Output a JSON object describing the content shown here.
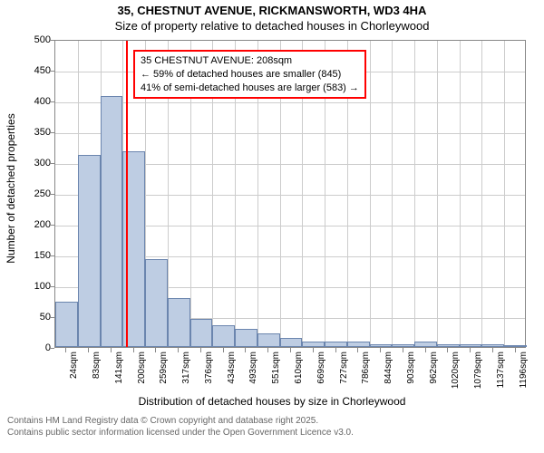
{
  "title": "35, CHESTNUT AVENUE, RICKMANSWORTH, WD3 4HA",
  "subtitle": "Size of property relative to detached houses in Chorleywood",
  "chart": {
    "type": "histogram",
    "ylabel": "Number of detached properties",
    "xlabel": "Distribution of detached houses by size in Chorleywood",
    "ylim": [
      0,
      500
    ],
    "ytick_step": 50,
    "yticks": [
      0,
      50,
      100,
      150,
      200,
      250,
      300,
      350,
      400,
      450,
      500
    ],
    "xticks": [
      "24sqm",
      "83sqm",
      "141sqm",
      "200sqm",
      "259sqm",
      "317sqm",
      "376sqm",
      "434sqm",
      "493sqm",
      "551sqm",
      "610sqm",
      "669sqm",
      "727sqm",
      "786sqm",
      "844sqm",
      "903sqm",
      "962sqm",
      "1020sqm",
      "1079sqm",
      "1137sqm",
      "1196sqm"
    ],
    "values": [
      73,
      312,
      407,
      318,
      143,
      79,
      45,
      35,
      30,
      22,
      15,
      8,
      8,
      8,
      4,
      4,
      8,
      4,
      4,
      4,
      2
    ],
    "bar_fill": "#becde3",
    "bar_stroke": "#6b85ae",
    "grid_color": "#cccccc",
    "axis_color": "#888888",
    "background_color": "#ffffff",
    "marker": {
      "position_index": 3.15,
      "color": "#ff0000"
    },
    "annotation": {
      "line1": "35 CHESTNUT AVENUE: 208sqm",
      "line2": "← 59% of detached houses are smaller (845)",
      "line3": "41% of semi-detached houses are larger (583) →",
      "border_color": "#ff0000",
      "bg_color": "#ffffff",
      "fontsize": 11
    },
    "title_fontsize": 13,
    "label_fontsize": 12,
    "tick_fontsize": 11
  },
  "footer": {
    "line1": "Contains HM Land Registry data © Crown copyright and database right 2025.",
    "line2": "Contains public sector information licensed under the Open Government Licence v3.0."
  }
}
